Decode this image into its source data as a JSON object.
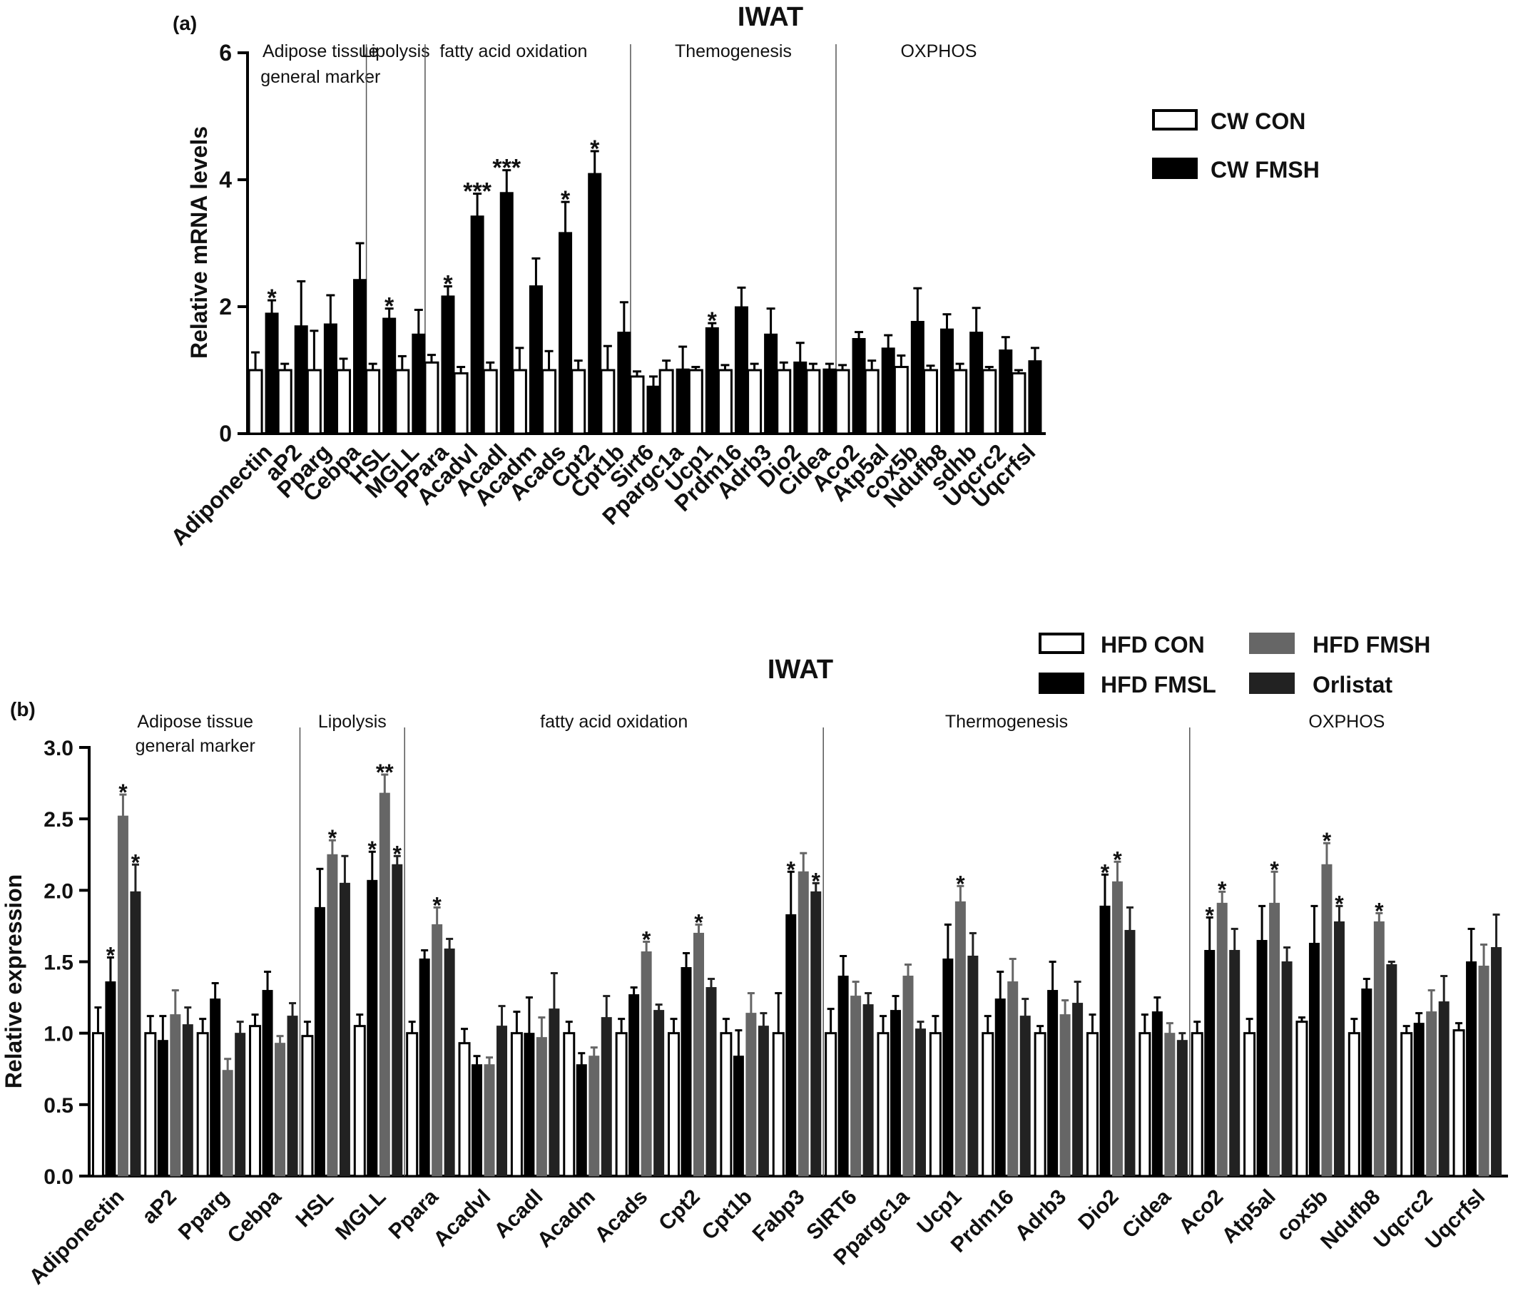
{
  "chart_data": [
    {
      "type": "bar",
      "panel_label": "(a)",
      "title": "IWAT",
      "ylabel": "Relative mRNA levels",
      "ylim": [
        0,
        6
      ],
      "yticks": [
        "0",
        "2",
        "4",
        "6"
      ],
      "legend_position": "top-right",
      "categories": [
        "Adiponectin",
        "aP2",
        "Pparg",
        "Cebpa",
        "HSL",
        "MGLL",
        "PPara",
        "Acadvl",
        "Acadl",
        "Acadm",
        "Acads",
        "Cpt2",
        "Cpt1b",
        "Sirt6",
        "Ppargc1a",
        "Ucp1",
        "Prdm16",
        "Adrb3",
        "Dio2",
        "Cidea",
        "Aco2",
        "Atp5al",
        "cox5b",
        "Ndufb8",
        "sdhb",
        "Uqcrc2",
        "Uqcrfsl"
      ],
      "groups": [
        {
          "label": "Adipose tissue general marker",
          "lines": [
            "Adipose tissue",
            "general marker"
          ],
          "start": 0,
          "end": 3
        },
        {
          "label": "Lipolysis",
          "lines": [
            "Lipolysis"
          ],
          "start": 4,
          "end": 5
        },
        {
          "label": "fatty acid  oxidation",
          "lines": [
            "fatty acid  oxidation"
          ],
          "start": 6,
          "end": 12
        },
        {
          "label": "Themogenesis",
          "lines": [
            "Themogenesis"
          ],
          "start": 13,
          "end": 19
        },
        {
          "label": "OXPHOS",
          "lines": [
            "OXPHOS"
          ],
          "start": 20,
          "end": 26
        }
      ],
      "series": [
        {
          "name": "CW CON",
          "color": "#ffffff",
          "values": [
            1.0,
            1.0,
            1.0,
            1.0,
            1.0,
            1.0,
            1.12,
            0.95,
            1.0,
            1.0,
            1.0,
            1.0,
            1.0,
            0.9,
            1.0,
            1.0,
            1.0,
            1.0,
            1.0,
            1.0,
            1.0,
            1.0,
            1.05,
            1.0,
            1.0,
            1.0,
            0.95
          ],
          "errors": [
            0.28,
            0.1,
            0.62,
            0.18,
            0.1,
            0.22,
            0.12,
            0.1,
            0.12,
            0.35,
            0.3,
            0.15,
            0.38,
            0.08,
            0.15,
            0.05,
            0.08,
            0.1,
            0.12,
            0.1,
            0.08,
            0.15,
            0.18,
            0.07,
            0.1,
            0.05,
            0.05
          ]
        },
        {
          "name": "CW FMSH",
          "color": "#000000",
          "values": [
            1.9,
            1.7,
            1.73,
            2.43,
            1.82,
            1.57,
            2.17,
            3.43,
            3.8,
            2.33,
            3.17,
            4.1,
            1.6,
            0.75,
            1.02,
            1.67,
            2.0,
            1.57,
            1.13,
            1.02,
            1.5,
            1.35,
            1.77,
            1.65,
            1.6,
            1.32,
            1.15
          ],
          "errors": [
            0.2,
            0.7,
            0.45,
            0.57,
            0.15,
            0.38,
            0.15,
            0.35,
            0.35,
            0.43,
            0.48,
            0.35,
            0.47,
            0.15,
            0.35,
            0.07,
            0.3,
            0.4,
            0.3,
            0.08,
            0.1,
            0.2,
            0.52,
            0.23,
            0.38,
            0.2,
            0.2
          ]
        }
      ],
      "annotations": [
        {
          "category": "Adiponectin",
          "series": "CW FMSH",
          "text": "*"
        },
        {
          "category": "HSL",
          "series": "CW FMSH",
          "text": "*"
        },
        {
          "category": "PPara",
          "series": "CW FMSH",
          "text": "*"
        },
        {
          "category": "Acadvl",
          "series": "CW FMSH",
          "text": "***"
        },
        {
          "category": "Acadl",
          "series": "CW FMSH",
          "text": "***"
        },
        {
          "category": "Acads",
          "series": "CW FMSH",
          "text": "*"
        },
        {
          "category": "Cpt2",
          "series": "CW FMSH",
          "text": "*"
        },
        {
          "category": "Ucp1",
          "series": "CW FMSH",
          "text": "*"
        }
      ]
    },
    {
      "type": "bar",
      "panel_label": "(b)",
      "title": "IWAT",
      "ylabel": "Relative expression",
      "ylim": [
        0,
        3
      ],
      "yticks": [
        "0.0",
        "0.5",
        "1.0",
        "1.5",
        "2.0",
        "2.5",
        "3.0"
      ],
      "legend_position": "top-right",
      "categories": [
        "Adiponectin",
        "aP2",
        "Pparg",
        "Cebpa",
        "HSL",
        "MGLL",
        "Ppara",
        "Acadvl",
        "Acadl",
        "Acadm",
        "Acads",
        "Cpt2",
        "Cpt1b",
        "Fabp3",
        "SIRT6",
        "Ppargc1a",
        "Ucp1",
        "Prdm16",
        "Adrb3",
        "Dio2",
        "Cidea",
        "Aco2",
        "Atp5al",
        "cox5b",
        "Ndufb8",
        "Uqcrc2",
        "Uqcrfsl"
      ],
      "groups": [
        {
          "label": "Adipose tissue general marker",
          "lines": [
            "Adipose tissue",
            "general marker"
          ],
          "start": 0,
          "end": 3
        },
        {
          "label": "Lipolysis",
          "lines": [
            "Lipolysis"
          ],
          "start": 4,
          "end": 5
        },
        {
          "label": "fatty acid oxidation",
          "lines": [
            "fatty acid oxidation"
          ],
          "start": 6,
          "end": 13
        },
        {
          "label": "Thermogenesis",
          "lines": [
            "Thermogenesis"
          ],
          "start": 14,
          "end": 20
        },
        {
          "label": "OXPHOS",
          "lines": [
            "OXPHOS"
          ],
          "start": 21,
          "end": 26
        }
      ],
      "series": [
        {
          "name": "HFD CON",
          "color": "#ffffff",
          "values": [
            1.0,
            1.0,
            1.0,
            1.05,
            0.98,
            1.05,
            1.0,
            0.93,
            1.0,
            1.0,
            1.0,
            1.0,
            1.0,
            1.0,
            1.0,
            1.0,
            1.0,
            1.0,
            1.0,
            1.0,
            1.0,
            1.0,
            1.0,
            1.08,
            1.0,
            1.0,
            1.02
          ],
          "errors": [
            0.18,
            0.12,
            0.1,
            0.08,
            0.1,
            0.08,
            0.08,
            0.1,
            0.15,
            0.08,
            0.1,
            0.1,
            0.1,
            0.28,
            0.17,
            0.12,
            0.12,
            0.12,
            0.05,
            0.13,
            0.13,
            0.08,
            0.1,
            0.03,
            0.1,
            0.05,
            0.05
          ]
        },
        {
          "name": "HFD FMSL",
          "color": "#000000",
          "values": [
            1.36,
            0.95,
            1.24,
            1.3,
            1.88,
            2.07,
            1.52,
            0.78,
            1.0,
            0.78,
            1.27,
            1.46,
            0.84,
            1.83,
            1.4,
            1.16,
            1.52,
            1.24,
            1.3,
            1.89,
            1.15,
            1.58,
            1.65,
            1.63,
            1.31,
            1.07,
            1.5
          ],
          "errors": [
            0.17,
            0.17,
            0.11,
            0.13,
            0.27,
            0.2,
            0.06,
            0.06,
            0.25,
            0.08,
            0.05,
            0.1,
            0.18,
            0.3,
            0.14,
            0.1,
            0.24,
            0.19,
            0.2,
            0.22,
            0.1,
            0.23,
            0.24,
            0.26,
            0.07,
            0.07,
            0.23
          ]
        },
        {
          "name": "HFD FMSH",
          "color": "#666666",
          "values": [
            2.52,
            1.13,
            0.74,
            0.93,
            2.25,
            2.68,
            1.76,
            0.78,
            0.97,
            0.84,
            1.57,
            1.7,
            1.14,
            2.13,
            1.26,
            1.4,
            1.92,
            1.36,
            1.13,
            2.06,
            1.0,
            1.91,
            1.91,
            2.18,
            1.78,
            1.15,
            1.47
          ],
          "errors": [
            0.15,
            0.17,
            0.08,
            0.05,
            0.1,
            0.13,
            0.12,
            0.05,
            0.14,
            0.06,
            0.07,
            0.06,
            0.14,
            0.13,
            0.1,
            0.08,
            0.11,
            0.16,
            0.1,
            0.14,
            0.07,
            0.08,
            0.22,
            0.15,
            0.06,
            0.15,
            0.15
          ]
        },
        {
          "name": "Orlistat",
          "color": "#222222",
          "values": [
            1.99,
            1.06,
            1.0,
            1.12,
            2.05,
            2.18,
            1.59,
            1.05,
            1.17,
            1.11,
            1.16,
            1.32,
            1.05,
            1.99,
            1.2,
            1.03,
            1.54,
            1.12,
            1.21,
            1.72,
            0.95,
            1.58,
            1.5,
            1.78,
            1.48,
            1.22,
            1.6
          ],
          "errors": [
            0.19,
            0.12,
            0.08,
            0.09,
            0.19,
            0.06,
            0.07,
            0.14,
            0.25,
            0.15,
            0.04,
            0.06,
            0.09,
            0.06,
            0.08,
            0.05,
            0.16,
            0.12,
            0.15,
            0.16,
            0.05,
            0.15,
            0.1,
            0.11,
            0.02,
            0.18,
            0.23
          ]
        }
      ],
      "annotations": [
        {
          "category": "Adiponectin",
          "series": "HFD FMSL",
          "text": "*"
        },
        {
          "category": "Adiponectin",
          "series": "HFD FMSH",
          "text": "*"
        },
        {
          "category": "Adiponectin",
          "series": "Orlistat",
          "text": "*"
        },
        {
          "category": "HSL",
          "series": "HFD FMSH",
          "text": "*"
        },
        {
          "category": "MGLL",
          "series": "HFD FMSL",
          "text": "*"
        },
        {
          "category": "MGLL",
          "series": "HFD FMSH",
          "text": "**"
        },
        {
          "category": "MGLL",
          "series": "Orlistat",
          "text": "*"
        },
        {
          "category": "Ppara",
          "series": "HFD FMSH",
          "text": "*"
        },
        {
          "category": "Acads",
          "series": "HFD FMSH",
          "text": "*"
        },
        {
          "category": "Cpt2",
          "series": "HFD FMSH",
          "text": "*"
        },
        {
          "category": "Fabp3",
          "series": "HFD FMSL",
          "text": "*"
        },
        {
          "category": "Fabp3",
          "series": "Orlistat",
          "text": "*"
        },
        {
          "category": "Ucp1",
          "series": "HFD FMSH",
          "text": "*"
        },
        {
          "category": "Dio2",
          "series": "HFD FMSL",
          "text": "*"
        },
        {
          "category": "Dio2",
          "series": "HFD FMSH",
          "text": "*"
        },
        {
          "category": "Aco2",
          "series": "HFD FMSL",
          "text": "*"
        },
        {
          "category": "Aco2",
          "series": "HFD FMSH",
          "text": "*"
        },
        {
          "category": "Atp5al",
          "series": "HFD FMSH",
          "text": "*"
        },
        {
          "category": "cox5b",
          "series": "HFD FMSH",
          "text": "*"
        },
        {
          "category": "cox5b",
          "series": "Orlistat",
          "text": "*"
        },
        {
          "category": "Ndufb8",
          "series": "HFD FMSH",
          "text": "*"
        }
      ]
    }
  ]
}
